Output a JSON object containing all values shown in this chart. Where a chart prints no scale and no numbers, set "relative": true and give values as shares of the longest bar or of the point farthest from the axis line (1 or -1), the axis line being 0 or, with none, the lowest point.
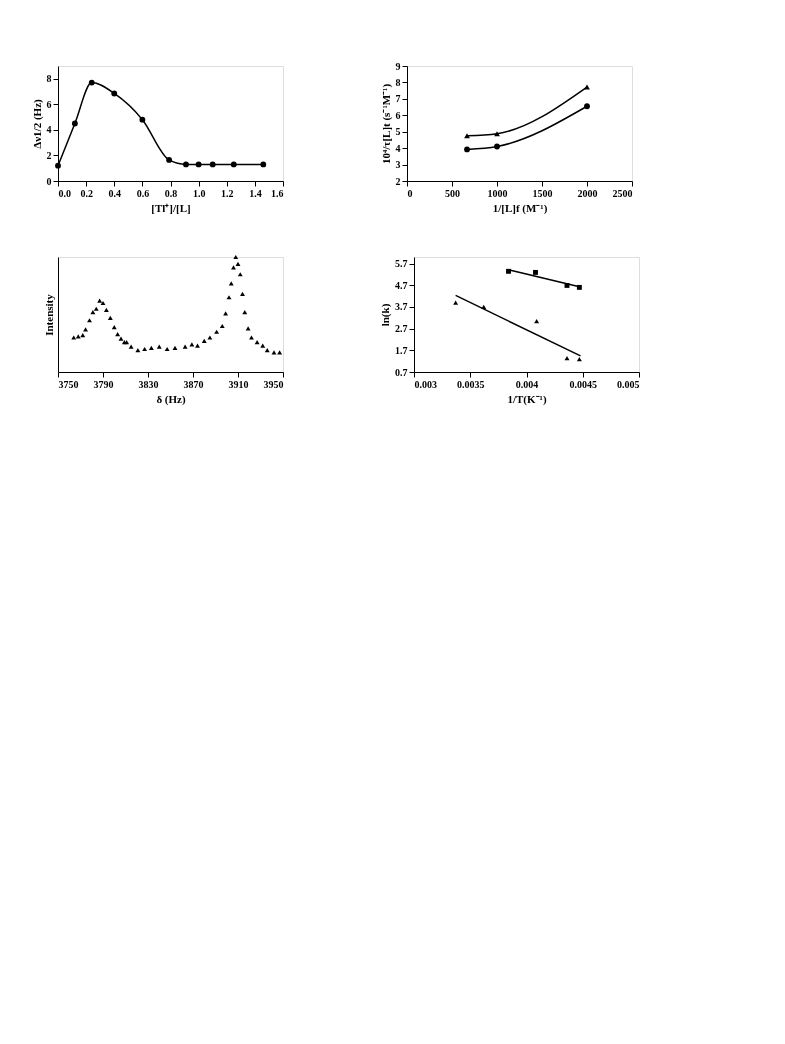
{
  "chart_data": [
    {
      "type": "line",
      "xlabel": "[Tl⁺]/[L]",
      "ylabel": "Δν1/2 (Hz)",
      "xlim": [
        0,
        1.6
      ],
      "ylim": [
        0,
        9
      ],
      "xticks": [
        {
          "value": 0,
          "label": "0.0"
        },
        0.2,
        0.4,
        0.6,
        0.8,
        {
          "value": 1,
          "label": "1.0"
        },
        1.2,
        1.4,
        1.6
      ],
      "yticks": [
        0,
        2,
        4,
        6,
        8
      ],
      "grid": false,
      "marker": "circle",
      "line_style": "solid",
      "x": [
        0,
        0.12,
        0.24,
        0.4,
        0.6,
        0.79,
        0.91,
        1.0,
        1.1,
        1.25,
        1.46
      ],
      "series": [
        {
          "color": "#000000",
          "values": [
            1.2,
            4.5,
            7.7,
            6.85,
            4.8,
            1.65,
            1.3,
            1.3,
            1.3,
            1.3,
            1.3
          ]
        }
      ]
    },
    {
      "type": "line",
      "xlabel": "1/[L]f (M⁻¹)",
      "ylabel": "10⁴/τ[L]t (s⁻¹M⁻¹)",
      "xlim": [
        0,
        2500
      ],
      "ylim": [
        2,
        9
      ],
      "xticks": [
        0,
        500,
        1000,
        1500,
        2000,
        2500
      ],
      "yticks": [
        2,
        3,
        4,
        5,
        6,
        7,
        8,
        9
      ],
      "grid": false,
      "line_style": "solid",
      "x": [
        667,
        1000,
        2000
      ],
      "series": [
        {
          "color": "#000000",
          "marker": "triangle",
          "values": [
            4.75,
            4.88,
            7.72
          ]
        },
        {
          "color": "#000000",
          "marker": "circle",
          "values": [
            3.92,
            4.1,
            6.55
          ]
        }
      ]
    },
    {
      "type": "scatter",
      "relative": true,
      "xlabel": "δ (Hz)",
      "ylabel": "Intensity",
      "xlim": [
        3750,
        3950
      ],
      "xticks": [
        3750,
        3790,
        3830,
        3870,
        3910,
        3950
      ],
      "tick_labels": "x",
      "grid": false,
      "marker": "triangle",
      "x": [
        3764,
        3768,
        3772,
        3774.5,
        3778,
        3781,
        3784,
        3787,
        3790,
        3793,
        3796.5,
        3800,
        3803,
        3806,
        3809,
        3811,
        3815,
        3821,
        3827,
        3833,
        3840,
        3847,
        3854,
        3863,
        3869,
        3874,
        3880,
        3885,
        3891,
        3896,
        3899,
        3902,
        3904,
        3906,
        3908,
        3910,
        3912,
        3914,
        3916,
        3919,
        3922,
        3927,
        3932,
        3936,
        3942,
        3947
      ],
      "series": [
        {
          "color": "#000000",
          "values": [
            0.3,
            0.31,
            0.32,
            0.37,
            0.45,
            0.52,
            0.55,
            0.62,
            0.6,
            0.54,
            0.47,
            0.39,
            0.33,
            0.29,
            0.26,
            0.26,
            0.22,
            0.19,
            0.2,
            0.21,
            0.22,
            0.2,
            0.21,
            0.22,
            0.24,
            0.23,
            0.27,
            0.3,
            0.35,
            0.4,
            0.51,
            0.65,
            0.77,
            0.91,
            1.0,
            0.94,
            0.85,
            0.68,
            0.52,
            0.38,
            0.3,
            0.26,
            0.23,
            0.19,
            0.17,
            0.17
          ]
        }
      ]
    },
    {
      "type": "scatter",
      "xlabel": "1/T(K⁻¹)",
      "ylabel": "ln(k)",
      "xlim": [
        0.003,
        0.005
      ],
      "ylim": [
        0.7,
        6.0
      ],
      "xticks": [
        0.003,
        0.0035,
        0.004,
        0.0045,
        0.005
      ],
      "yticks": [
        0.7,
        1.7,
        2.7,
        3.7,
        4.7,
        5.7
      ],
      "grid": false,
      "series": [
        {
          "color": "#000000",
          "marker": "square",
          "x": [
            0.00384,
            0.00408,
            0.00436,
            0.00447
          ],
          "values": [
            5.34,
            5.29,
            4.69,
            4.6
          ]
        },
        {
          "color": "#000000",
          "marker": "triangle",
          "x": [
            0.00337,
            0.00362,
            0.00409,
            0.00436,
            0.00447
          ],
          "values": [
            3.9,
            3.7,
            3.04,
            1.34,
            1.29
          ]
        },
        {
          "type": "line",
          "color": "#000000",
          "marker": "none",
          "line_style": "solid",
          "x": [
            0.00384,
            0.00447
          ],
          "values": [
            5.41,
            4.63
          ]
        },
        {
          "type": "line",
          "color": "#000000",
          "marker": "none",
          "line_style": "solid",
          "x": [
            0.00337,
            0.00448
          ],
          "values": [
            4.23,
            1.44
          ]
        }
      ]
    }
  ]
}
